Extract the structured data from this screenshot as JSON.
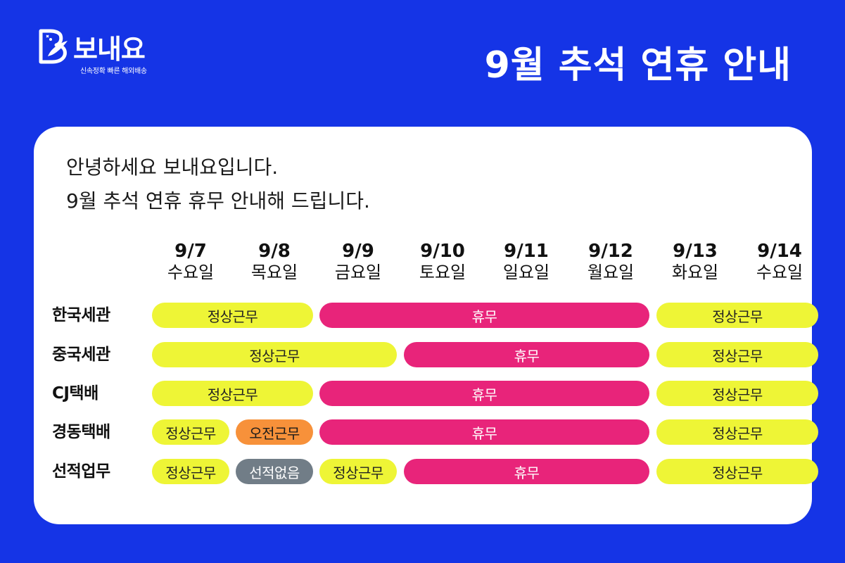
{
  "logo": {
    "brand": "보내요",
    "tagline": "신속정확 빠른 해외배송"
  },
  "headline": "9월 추석 연휴 안내",
  "intro": {
    "line1": "안녕하세요 보내요입니다.",
    "line2": "9월 추석 연휴 휴무 안내해 드립니다."
  },
  "dates": [
    {
      "date": "9/7",
      "day": "수요일"
    },
    {
      "date": "9/8",
      "day": "목요일"
    },
    {
      "date": "9/9",
      "day": "금요일"
    },
    {
      "date": "9/10",
      "day": "토요일"
    },
    {
      "date": "9/11",
      "day": "일요일"
    },
    {
      "date": "9/12",
      "day": "월요일"
    },
    {
      "date": "9/13",
      "day": "화요일"
    },
    {
      "date": "9/14",
      "day": "수요일"
    }
  ],
  "rows": [
    {
      "label": "한국세관",
      "segments": [
        {
          "text": "정상근무",
          "type": "work"
        },
        {
          "text": "휴무",
          "type": "off"
        },
        {
          "text": "정상근무",
          "type": "work"
        }
      ]
    },
    {
      "label": "중국세관",
      "segments": [
        {
          "text": "정상근무",
          "type": "work"
        },
        {
          "text": "휴무",
          "type": "off"
        },
        {
          "text": "정상근무",
          "type": "work"
        }
      ]
    },
    {
      "label": "CJ택배",
      "segments": [
        {
          "text": "정상근무",
          "type": "work"
        },
        {
          "text": "휴무",
          "type": "off"
        },
        {
          "text": "정상근무",
          "type": "work"
        }
      ]
    },
    {
      "label": "경동택배",
      "segments": [
        {
          "text": "정상근무",
          "type": "work"
        },
        {
          "text": "오전근무",
          "type": "half"
        },
        {
          "text": "휴무",
          "type": "off"
        },
        {
          "text": "정상근무",
          "type": "work"
        }
      ]
    },
    {
      "label": "선적업무",
      "segments": [
        {
          "text": "정상근무",
          "type": "work"
        },
        {
          "text": "선적없음",
          "type": "none"
        },
        {
          "text": "정상근무",
          "type": "work"
        },
        {
          "text": "휴무",
          "type": "off"
        },
        {
          "text": "정상근무",
          "type": "work"
        }
      ]
    }
  ],
  "colors": {
    "background": "#1534e6",
    "work": "#eef536",
    "off": "#e8247a",
    "half": "#f7913a",
    "none": "#717d87"
  },
  "icons": {
    "logo": "bird-b-logo-icon"
  }
}
